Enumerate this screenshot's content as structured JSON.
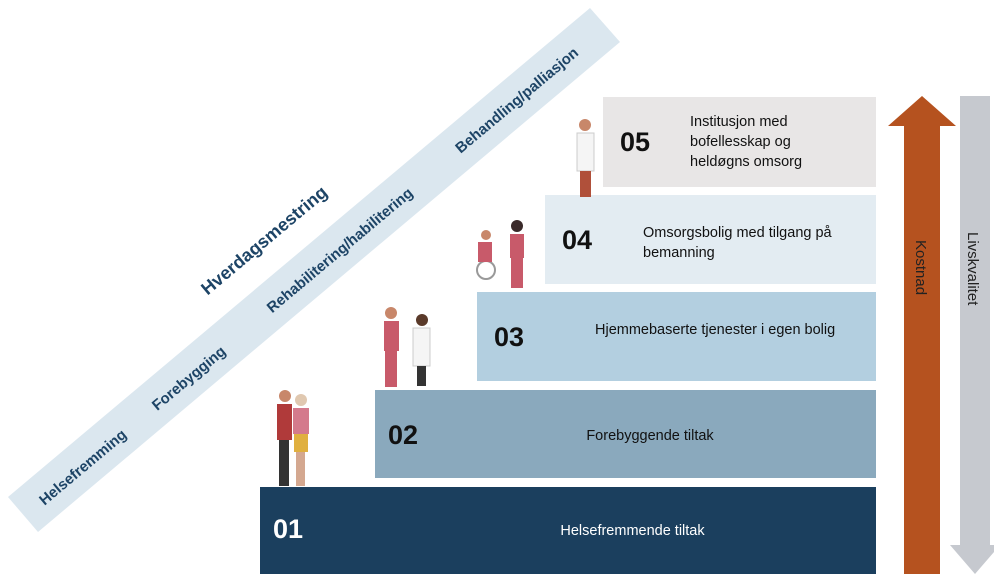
{
  "band": {
    "heading": "Hverdagsmestring",
    "items": [
      "Helsefremming",
      "Forebygging",
      "Rehabilitering/habilitering",
      "Behandling/palliasjon"
    ]
  },
  "steps": [
    {
      "number": "01",
      "label": "Helsefremmende tiltak"
    },
    {
      "number": "02",
      "label": "Forebyggende tiltak"
    },
    {
      "number": "03",
      "label": "Hjemmebaserte tjenester i egen bolig"
    },
    {
      "number": "04",
      "label": "Omsorgsbolig med tilgang på bemanning"
    },
    {
      "number": "05",
      "label": "Institusjon med bofellesskap og heldøgns omsorg"
    }
  ],
  "arrows": {
    "up": "Kostnad",
    "down": "Livskvalitet"
  }
}
